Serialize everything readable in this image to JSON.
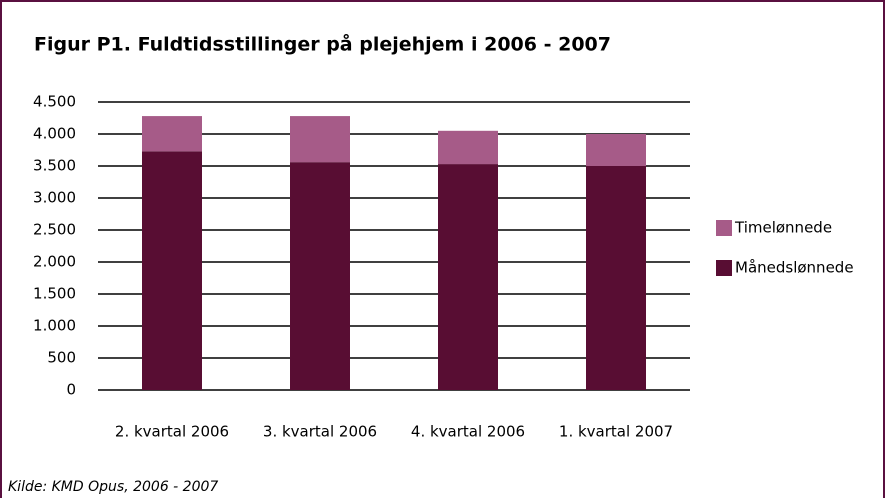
{
  "chart_data": {
    "type": "stacked_bar",
    "title": "Figur P1. Fuldtidsstillinger på plejehjem i 2006 - 2007",
    "categories": [
      "2. kvartal 2006",
      "3. kvartal 2006",
      "4. kvartal 2006",
      "1. kvartal 2007"
    ],
    "series": [
      {
        "name": "Månedslønnede",
        "color": "#580d33",
        "values": [
          3730,
          3560,
          3530,
          3500
        ]
      },
      {
        "name": "Timelønnede",
        "color": "#a65b88",
        "values": [
          550,
          720,
          520,
          500
        ]
      }
    ],
    "ylim": [
      0,
      4500
    ],
    "yticks": [
      0,
      {
        "value": 500,
        "label": "500"
      },
      {
        "value": 1000,
        "label": "1.000"
      },
      {
        "value": 1500,
        "label": "1.500"
      },
      {
        "value": 2000,
        "label": "2.000"
      },
      {
        "value": 2500,
        "label": "2.500"
      },
      {
        "value": 3000,
        "label": "3.000"
      },
      {
        "value": 3500,
        "label": "3.500"
      },
      {
        "value": 4000,
        "label": "4.000"
      },
      {
        "value": 4500,
        "label": "4.500"
      }
    ],
    "grid": true,
    "legend": "right",
    "source": "Kilde: KMD Opus, 2006 - 2007"
  }
}
